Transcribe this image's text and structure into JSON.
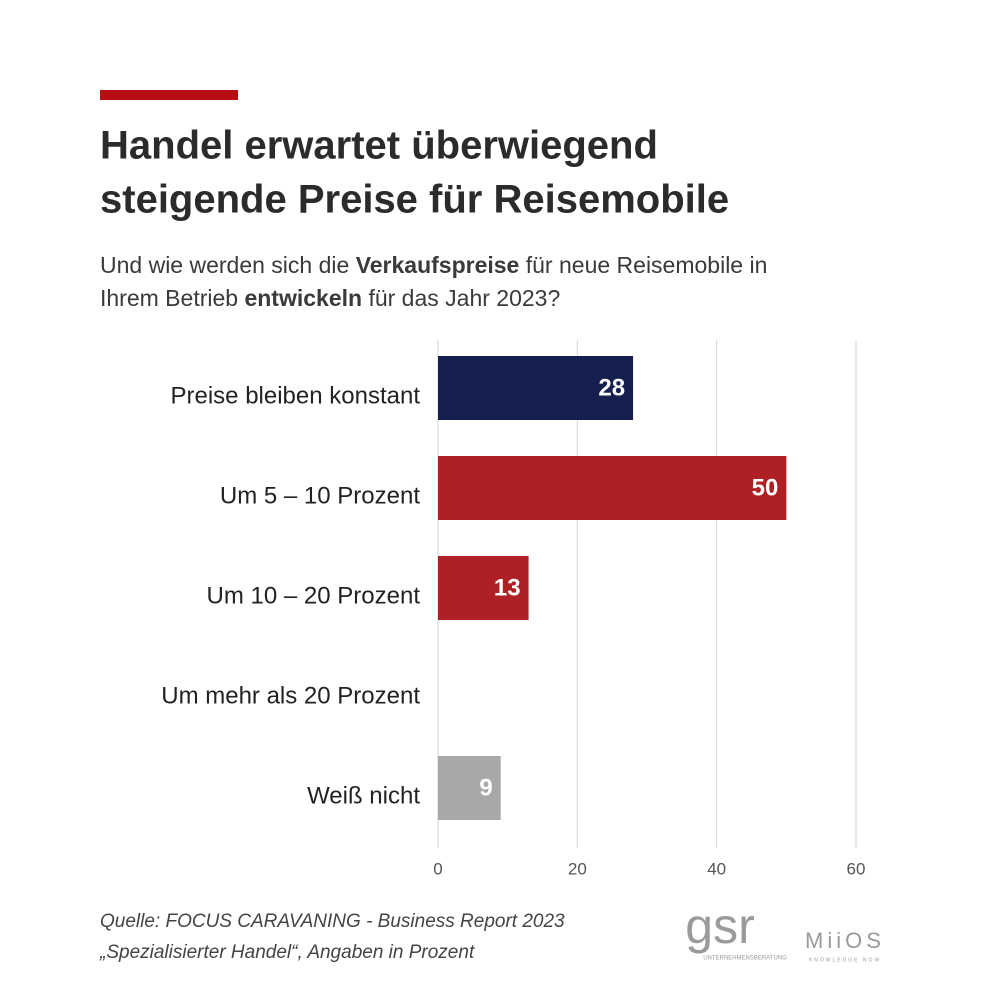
{
  "chart_data": {
    "type": "bar",
    "orientation": "horizontal",
    "title": [
      "Handel erwartet überwiegend",
      "steigende Preise für Reisemobile"
    ],
    "subtitle": [
      [
        {
          "text": "Und wie werden sich die ",
          "bold": false
        },
        {
          "text": "Verkaufspreise",
          "bold": true
        },
        {
          "text": " für neue Reisemobile in",
          "bold": false
        }
      ],
      [
        {
          "text": "Ihrem Betrieb ",
          "bold": false
        },
        {
          "text": "entwickeln",
          "bold": true
        },
        {
          "text": " für das Jahr 2023?",
          "bold": false
        }
      ]
    ],
    "categories": [
      "Preise bleiben konstant",
      "Um 5 – 10 Prozent",
      "Um 10 – 20 Prozent",
      "Um mehr als 20 Prozent",
      "Weiß nicht"
    ],
    "values": [
      28,
      50,
      13,
      null,
      9
    ],
    "colors": [
      "#15204f",
      "#ae2024",
      "#ae2024",
      "#ae2024",
      "#a8a8a8"
    ],
    "xlim": [
      0,
      60
    ],
    "xticks": [
      0,
      20,
      40,
      60
    ],
    "grid": true,
    "source": [
      "Quelle: FOCUS CARAVANING - Business Report 2023",
      "„Spezialisierter Handel“, Angaben in Prozent"
    ],
    "logos": [
      {
        "name": "gsr",
        "tagline": "UNTERNEHMENSBERATUNG"
      },
      {
        "name": "MiiOS",
        "tagline": "KNOWLEDGE NOW"
      }
    ]
  }
}
